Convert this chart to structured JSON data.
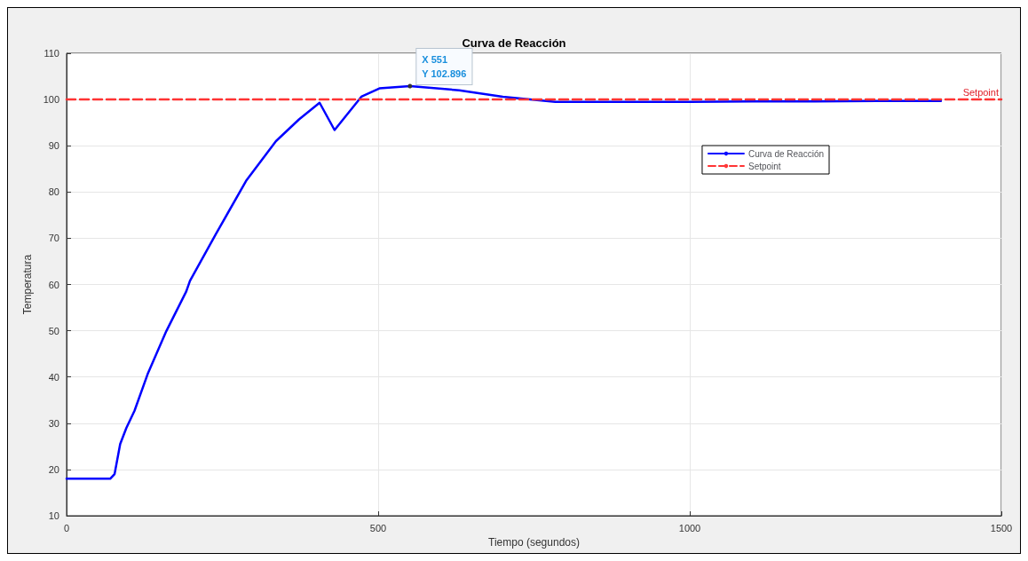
{
  "chart_data": {
    "type": "line",
    "title": "Curva de Reacción",
    "xlabel": "Tiempo (segundos)",
    "ylabel": "Temperatura",
    "xlim": [
      0,
      1500
    ],
    "xticks": [
      0,
      500,
      1000,
      1500
    ],
    "ylim": [
      10,
      110
    ],
    "yticks": [
      10,
      20,
      30,
      40,
      50,
      60,
      70,
      80,
      90,
      100,
      110
    ],
    "grid": true,
    "legend": "top right",
    "series": [
      {
        "name": "Curva de Reacción",
        "color": "#0000ff",
        "line_style": "solid",
        "x": [
          0,
          70,
          77,
          86,
          96,
          109,
          130,
          160,
          192,
          198,
          240,
          288,
          336,
          373,
          406,
          430,
          473,
          502,
          551,
          630,
          700,
          784,
          900,
          1000,
          1100,
          1200,
          1300,
          1403
        ],
        "values": [
          18,
          18,
          19,
          25.5,
          29,
          32.7,
          40.6,
          49.9,
          58.5,
          60.8,
          71,
          82.4,
          91,
          95.7,
          99.3,
          93.4,
          100.6,
          102.4,
          102.896,
          102,
          100.6,
          99.5,
          99.5,
          99.5,
          99.6,
          99.6,
          99.7,
          99.7
        ]
      },
      {
        "name": "Setpoint",
        "color": "#ff3333",
        "line_style": "dashed",
        "x": [
          0,
          1500
        ],
        "values": [
          100,
          100
        ]
      }
    ],
    "annotations": [
      {
        "text": "X 551\nY 102.896",
        "x": 551,
        "y": 102.896
      },
      {
        "text": "Setpoint",
        "x": 1500,
        "y": 100
      }
    ]
  }
}
